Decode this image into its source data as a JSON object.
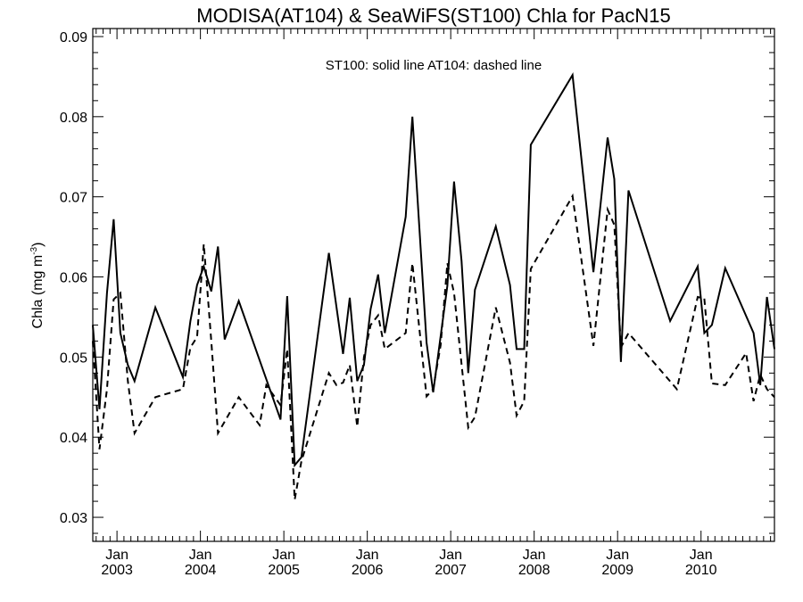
{
  "chart_data": {
    "type": "line",
    "title": "MODISA(AT104) & SeaWiFS(ST100)  Chla for PacN15",
    "ylabel": "Chla (mg m",
    "ylabel_sup": "-3",
    "ylabel_close": ")",
    "annotation": "ST100: solid line   AT104: dashed line",
    "ylim": [
      0.027,
      0.091
    ],
    "xlim": [
      2002.71,
      2010.88
    ],
    "yticks": [
      0.03,
      0.04,
      0.05,
      0.06,
      0.07,
      0.08,
      0.09
    ],
    "ytick_labels": [
      "0.03",
      "0.04",
      "0.05",
      "0.06",
      "0.07",
      "0.08",
      "0.09"
    ],
    "xticks": [
      {
        "x": 2003.0,
        "month": "Jan",
        "year": "2003"
      },
      {
        "x": 2004.0,
        "month": "Jan",
        "year": "2004"
      },
      {
        "x": 2005.0,
        "month": "Jan",
        "year": "2005"
      },
      {
        "x": 2006.0,
        "month": "Jan",
        "year": "2006"
      },
      {
        "x": 2007.0,
        "month": "Jan",
        "year": "2007"
      },
      {
        "x": 2008.0,
        "month": "Jan",
        "year": "2008"
      },
      {
        "x": 2009.0,
        "month": "Jan",
        "year": "2009"
      },
      {
        "x": 2010.0,
        "month": "Jan",
        "year": "2010"
      }
    ],
    "series": [
      {
        "name": "ST100",
        "style": "solid",
        "color": "#000000",
        "points": [
          [
            2002.71,
            0.054
          ],
          [
            2002.79,
            0.0435
          ],
          [
            2002.88,
            0.058
          ],
          [
            2002.96,
            0.0672
          ],
          [
            2003.04,
            0.053
          ],
          [
            2003.13,
            0.049
          ],
          [
            2003.21,
            0.047
          ],
          [
            2003.46,
            0.0562
          ],
          [
            2003.79,
            0.0475
          ],
          [
            2003.88,
            0.0545
          ],
          [
            2003.96,
            0.059
          ],
          [
            2004.04,
            0.0613
          ],
          [
            2004.13,
            0.0582
          ],
          [
            2004.21,
            0.0638
          ],
          [
            2004.29,
            0.0522
          ],
          [
            2004.46,
            0.057
          ],
          [
            2004.96,
            0.0422
          ],
          [
            2005.04,
            0.0576
          ],
          [
            2005.13,
            0.0365
          ],
          [
            2005.21,
            0.0375
          ],
          [
            2005.54,
            0.063
          ],
          [
            2005.71,
            0.0504
          ],
          [
            2005.79,
            0.0574
          ],
          [
            2005.88,
            0.047
          ],
          [
            2005.96,
            0.049
          ],
          [
            2006.04,
            0.056
          ],
          [
            2006.13,
            0.0603
          ],
          [
            2006.21,
            0.053
          ],
          [
            2006.46,
            0.0675
          ],
          [
            2006.54,
            0.08
          ],
          [
            2006.71,
            0.0518
          ],
          [
            2006.79,
            0.0456
          ],
          [
            2006.96,
            0.0589
          ],
          [
            2007.04,
            0.0719
          ],
          [
            2007.13,
            0.062
          ],
          [
            2007.21,
            0.048
          ],
          [
            2007.29,
            0.0584
          ],
          [
            2007.54,
            0.0663
          ],
          [
            2007.71,
            0.059
          ],
          [
            2007.79,
            0.051
          ],
          [
            2007.88,
            0.051
          ],
          [
            2007.96,
            0.0765
          ],
          [
            2008.46,
            0.0852
          ],
          [
            2008.71,
            0.0606
          ],
          [
            2008.88,
            0.0774
          ],
          [
            2008.96,
            0.0722
          ],
          [
            2009.04,
            0.0494
          ],
          [
            2009.13,
            0.0708
          ],
          [
            2009.63,
            0.0545
          ],
          [
            2009.96,
            0.0613
          ],
          [
            2010.04,
            0.053
          ],
          [
            2010.13,
            0.054
          ],
          [
            2010.29,
            0.0611
          ],
          [
            2010.63,
            0.053
          ],
          [
            2010.71,
            0.0465
          ],
          [
            2010.79,
            0.0575
          ],
          [
            2010.88,
            0.051
          ]
        ]
      },
      {
        "name": "AT104",
        "style": "dashed",
        "color": "#000000",
        "points": [
          [
            2002.71,
            0.052
          ],
          [
            2002.79,
            0.0385
          ],
          [
            2002.88,
            0.046
          ],
          [
            2002.96,
            0.0572
          ],
          [
            2003.04,
            0.058
          ],
          [
            2003.13,
            0.047
          ],
          [
            2003.21,
            0.0405
          ],
          [
            2003.46,
            0.045
          ],
          [
            2003.79,
            0.046
          ],
          [
            2003.88,
            0.0512
          ],
          [
            2003.96,
            0.0525
          ],
          [
            2004.04,
            0.0641
          ],
          [
            2004.13,
            0.052
          ],
          [
            2004.21,
            0.0405
          ],
          [
            2004.46,
            0.045
          ],
          [
            2004.71,
            0.0415
          ],
          [
            2004.79,
            0.0465
          ],
          [
            2004.96,
            0.044
          ],
          [
            2005.04,
            0.051
          ],
          [
            2005.13,
            0.0322
          ],
          [
            2005.21,
            0.037
          ],
          [
            2005.54,
            0.048
          ],
          [
            2005.63,
            0.0465
          ],
          [
            2005.71,
            0.0468
          ],
          [
            2005.79,
            0.049
          ],
          [
            2005.88,
            0.0413
          ],
          [
            2005.96,
            0.05
          ],
          [
            2006.04,
            0.054
          ],
          [
            2006.13,
            0.0552
          ],
          [
            2006.21,
            0.051
          ],
          [
            2006.46,
            0.053
          ],
          [
            2006.54,
            0.0617
          ],
          [
            2006.71,
            0.0451
          ],
          [
            2006.79,
            0.046
          ],
          [
            2006.88,
            0.0515
          ],
          [
            2006.96,
            0.0617
          ],
          [
            2007.04,
            0.058
          ],
          [
            2007.21,
            0.0412
          ],
          [
            2007.29,
            0.0425
          ],
          [
            2007.54,
            0.0562
          ],
          [
            2007.71,
            0.0493
          ],
          [
            2007.79,
            0.0427
          ],
          [
            2007.88,
            0.0445
          ],
          [
            2007.96,
            0.061
          ],
          [
            2008.46,
            0.0701
          ],
          [
            2008.71,
            0.0514
          ],
          [
            2008.88,
            0.0684
          ],
          [
            2008.96,
            0.0665
          ],
          [
            2009.04,
            0.0512
          ],
          [
            2009.13,
            0.053
          ],
          [
            2009.71,
            0.046
          ],
          [
            2009.96,
            0.0575
          ],
          [
            2010.04,
            0.0573
          ],
          [
            2010.13,
            0.0467
          ],
          [
            2010.29,
            0.0465
          ],
          [
            2010.54,
            0.0505
          ],
          [
            2010.63,
            0.0445
          ],
          [
            2010.71,
            0.0478
          ],
          [
            2010.79,
            0.046
          ],
          [
            2010.88,
            0.045
          ]
        ]
      }
    ]
  }
}
